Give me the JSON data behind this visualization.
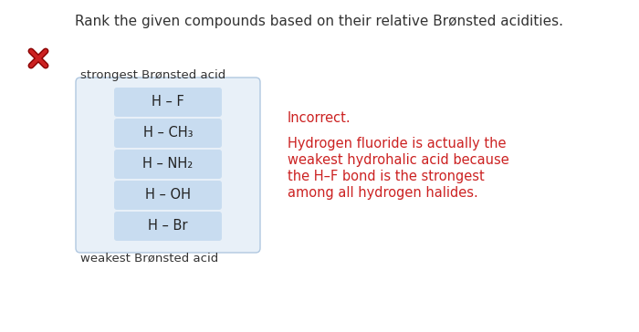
{
  "title": "Rank the given compounds based on their relative Brønsted acidities.",
  "strongest_label": "strongest Brønsted acid",
  "weakest_label": "weakest Brønsted acid",
  "compounds": [
    "H – F",
    "H – CH₃",
    "H – NH₂",
    "H – OH",
    "H – Br"
  ],
  "box_color": "#c8dcf0",
  "outer_box_color": "#e8f0f8",
  "outer_box_border": "#b0c8e0",
  "incorrect_label": "Incorrect.",
  "explanation_lines": [
    "Hydrogen fluoride is actually the",
    "weakest hydrohalic acid because",
    "the H–F bond is the strongest",
    "among all hydrogen halides."
  ],
  "red_color": "#cc2222",
  "x_mark_color": "#cc2222",
  "bg_color": "#ffffff",
  "label_color": "#333333",
  "compound_fontsize": 10.5,
  "label_fontsize": 9.5,
  "incorrect_fontsize": 10.5,
  "explanation_fontsize": 10.5,
  "title_fontsize": 11
}
